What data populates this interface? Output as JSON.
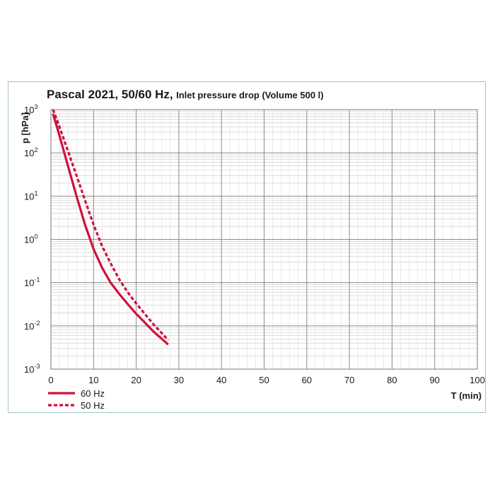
{
  "title_main": "Pascal 2021, 50/60 Hz,",
  "title_sub": "Inlet pressure drop (Volume 500 l)",
  "chart_data": {
    "type": "line",
    "title": "Pascal 2021, 50/60 Hz, Inlet pressure drop (Volume 500 l)",
    "xlabel": "T (min)",
    "ylabel": "p [hPa]",
    "xlim": [
      0,
      100
    ],
    "ylim": [
      0.001,
      1000
    ],
    "yscale": "log",
    "x_ticks": [
      "0",
      "10",
      "20",
      "30",
      "40",
      "50",
      "60",
      "70",
      "80",
      "90",
      "100"
    ],
    "y_ticks": [
      {
        "base": "10",
        "exp": "-3",
        "value": 0.001
      },
      {
        "base": "10",
        "exp": "-2",
        "value": 0.01
      },
      {
        "base": "10",
        "exp": "-1",
        "value": 0.1
      },
      {
        "base": "10",
        "exp": "0",
        "value": 1
      },
      {
        "base": "10",
        "exp": "1",
        "value": 10
      },
      {
        "base": "10",
        "exp": "2",
        "value": 100
      },
      {
        "base": "10",
        "exp": "3",
        "value": 1000
      }
    ],
    "grid": true,
    "legend_position": "bottom-left",
    "series": [
      {
        "name": "60 Hz",
        "color": "#d0103a",
        "dash": "solid",
        "x": [
          0.5,
          2,
          4,
          6,
          8,
          10,
          12,
          14,
          16,
          18,
          20,
          22,
          24,
          26,
          27.5
        ],
        "y": [
          800,
          250,
          50,
          10,
          2.2,
          0.6,
          0.22,
          0.1,
          0.055,
          0.032,
          0.019,
          0.012,
          0.0075,
          0.005,
          0.0037
        ]
      },
      {
        "name": "50 Hz",
        "color": "#d0103a",
        "dash": "dashed",
        "x": [
          0.5,
          2,
          4,
          6,
          8,
          10,
          12,
          14,
          16,
          18,
          20,
          22,
          24,
          26,
          27.5
        ],
        "y": [
          1000,
          400,
          110,
          30,
          8,
          2.2,
          0.7,
          0.28,
          0.12,
          0.06,
          0.033,
          0.019,
          0.011,
          0.0068,
          0.0047
        ]
      }
    ]
  }
}
